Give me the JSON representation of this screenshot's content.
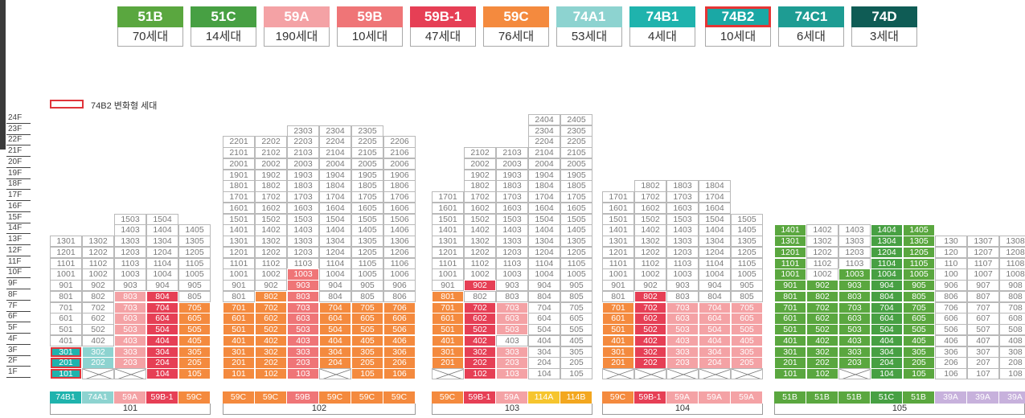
{
  "colors": {
    "51B": "#5aa73f",
    "51C": "#47a043",
    "59A": "#f4a2a5",
    "59B": "#ef7577",
    "59B-1": "#e63f55",
    "59C": "#f48a3e",
    "74A1": "#8dd3d0",
    "74B1": "#1fb3ad",
    "74B2": "#1aa8a5",
    "74C1": "#1e9c93",
    "74D": "#0f5c55",
    "114A": "#f6c52e",
    "114B": "#f3a71f",
    "39A": "#c7b1dc",
    "highlight": "#e0343a",
    "empty_text": "#7a7a7a"
  },
  "legend": [
    {
      "code": "51B",
      "count": "70세대"
    },
    {
      "code": "51C",
      "count": "14세대"
    },
    {
      "code": "59A",
      "count": "190세대"
    },
    {
      "code": "59B",
      "count": "10세대"
    },
    {
      "code": "59B-1",
      "count": "47세대"
    },
    {
      "code": "59C",
      "count": "76세대"
    },
    {
      "code": "74A1",
      "count": "53세대"
    },
    {
      "code": "74B1",
      "count": "4세대"
    },
    {
      "code": "74B2",
      "count": "10세대",
      "selected": true
    },
    {
      "code": "74C1",
      "count": "6세대"
    },
    {
      "code": "74D",
      "count": "3세대"
    }
  ],
  "note": {
    "label": "74B2 변화형 세대"
  },
  "floors": [
    "24F",
    "23F",
    "22F",
    "21F",
    "20F",
    "19F",
    "18F",
    "17F",
    "16F",
    "15F",
    "14F",
    "13F",
    "12F",
    "11F",
    "10F",
    "9F",
    "8F",
    "7F",
    "6F",
    "5F",
    "4F",
    "3F",
    "2F",
    "1F"
  ],
  "buildings": [
    {
      "name": "101",
      "columns": [
        {
          "max": 13,
          "colored": {
            "3": "74B1",
            "2": "74B1",
            "1": "74B1"
          },
          "highlight": [
            3,
            2,
            1
          ]
        },
        {
          "max": 13,
          "colored": {
            "3": "74A1",
            "2": "74A1"
          },
          "x_floors": [
            1
          ]
        },
        {
          "max": 15,
          "min": 2,
          "colored": {
            "8": "59A",
            "7": "59A",
            "6": "59A",
            "5": "59A",
            "4": "59A",
            "3": "59A",
            "2": "59A"
          },
          "x_floors": [
            1
          ]
        },
        {
          "max": 15,
          "colored": {
            "8": "59B-1",
            "7": "59B-1",
            "6": "59B-1",
            "5": "59B-1",
            "4": "59B-1",
            "3": "59B-1",
            "2": "59B-1",
            "1": "59B-1"
          }
        },
        {
          "max": 14,
          "colored": {
            "7": "59C",
            "6": "59C",
            "5": "59C",
            "4": "59C",
            "3": "59C",
            "2": "59C",
            "1": "59C"
          }
        }
      ],
      "tags": [
        "74B1",
        "74A1",
        "59A",
        "59B-1",
        "59C"
      ]
    },
    {
      "name": "102",
      "columns": [
        {
          "max": 22,
          "colored": {
            "7": "59C",
            "6": "59C",
            "5": "59C",
            "4": "59C",
            "3": "59C",
            "2": "59C",
            "1": "59C"
          }
        },
        {
          "max": 22,
          "colored": {
            "8": "59C",
            "7": "59C",
            "6": "59C",
            "5": "59C",
            "4": "59C",
            "3": "59C",
            "2": "59C",
            "1": "59C"
          }
        },
        {
          "max": 23,
          "colored": {
            "10": "59B",
            "9": "59B",
            "8": "59B",
            "7": "59B",
            "6": "59B",
            "5": "59B",
            "4": "59B",
            "3": "59B",
            "2": "59B",
            "1": "59B"
          }
        },
        {
          "max": 23,
          "colored": {
            "7": "59C",
            "6": "59C",
            "5": "59C",
            "4": "59C",
            "3": "59C",
            "2": "59C"
          },
          "x_floors": [
            1
          ]
        },
        {
          "max": 23,
          "colored": {
            "7": "59C",
            "6": "59C",
            "5": "59C",
            "4": "59C",
            "3": "59C",
            "2": "59C",
            "1": "59C"
          }
        },
        {
          "max": 22,
          "colored": {
            "7": "59C",
            "6": "59C",
            "5": "59C",
            "4": "59C",
            "3": "59C",
            "2": "59C",
            "1": "59C"
          }
        }
      ],
      "tags": [
        "59C",
        "59C",
        "59B",
        "59C",
        "59C",
        "59C"
      ]
    },
    {
      "name": "103",
      "columns": [
        {
          "max": 17,
          "colored": {
            "8": "59C",
            "7": "59C",
            "6": "59C",
            "5": "59C",
            "4": "59C",
            "3": "59C",
            "2": "59C"
          },
          "x_floors": [
            1
          ]
        },
        {
          "max": 21,
          "colored": {
            "9": "59B-1",
            "7": "59B-1",
            "6": "59B-1",
            "5": "59B-1",
            "4": "59B-1",
            "3": "59B-1",
            "2": "59B-1",
            "1": "59B-1"
          }
        },
        {
          "max": 21,
          "colored": {
            "7": "59A",
            "6": "59A",
            "5": "59A",
            "3": "59A",
            "2": "59A",
            "1": "59A"
          }
        },
        {
          "max": 24
        },
        {
          "max": 24
        }
      ],
      "tags": [
        "59C",
        "59B-1",
        "59A",
        "114A",
        "114B"
      ]
    },
    {
      "name": "104",
      "columns": [
        {
          "max": 17,
          "colored": {
            "7": "59C",
            "6": "59C",
            "5": "59C",
            "4": "59C",
            "3": "59C",
            "2": "59C"
          },
          "x_floors": [
            1
          ]
        },
        {
          "max": 18,
          "colored": {
            "8": "59B-1",
            "7": "59B-1",
            "6": "59B-1",
            "5": "59B-1",
            "4": "59B-1",
            "3": "59B-1",
            "2": "59B-1"
          },
          "x_floors": [
            1
          ]
        },
        {
          "max": 18,
          "colored": {
            "7": "59A",
            "6": "59A",
            "5": "59A",
            "4": "59A",
            "3": "59A",
            "2": "59A"
          },
          "x_floors": [
            1
          ]
        },
        {
          "max": 18,
          "colored": {
            "7": "59A",
            "6": "59A",
            "5": "59A",
            "4": "59A",
            "3": "59A",
            "2": "59A"
          },
          "x_floors": [
            1
          ]
        },
        {
          "max": 15,
          "colored": {
            "7": "59A",
            "6": "59A",
            "5": "59A",
            "4": "59A",
            "3": "59A",
            "2": "59A"
          },
          "x_floors": [
            1
          ]
        }
      ],
      "tags": [
        "59C",
        "59B-1",
        "59A",
        "59A",
        "59A"
      ]
    },
    {
      "name": "105",
      "columns": [
        {
          "max": 14,
          "colored": {
            "14": "51B",
            "13": "51B",
            "12": "51B",
            "11": "51B",
            "10": "51B",
            "9": "51B",
            "8": "51B",
            "7": "51B",
            "6": "51B",
            "5": "51B",
            "4": "51B",
            "3": "51B",
            "2": "51B",
            "1": "51B"
          }
        },
        {
          "max": 14,
          "colored": {
            "9": "51B",
            "8": "51B",
            "7": "51B",
            "6": "51B",
            "5": "51B",
            "4": "51B",
            "3": "51B",
            "2": "51B",
            "1": "51B"
          }
        },
        {
          "max": 14,
          "colored": {
            "10": "51B",
            "9": "51B",
            "8": "51B",
            "7": "51B",
            "6": "51B",
            "5": "51B",
            "4": "51B",
            "3": "51B",
            "2": "51B"
          },
          "x_floors": [
            1
          ]
        },
        {
          "max": 14,
          "colored": {
            "14": "51C",
            "13": "51C",
            "12": "51C",
            "11": "51C",
            "10": "51C",
            "9": "51C",
            "8": "51C",
            "7": "51C",
            "6": "51C",
            "5": "51C",
            "4": "51C",
            "3": "51C",
            "2": "51C",
            "1": "51C"
          }
        },
        {
          "max": 14,
          "colored": {
            "14": "51B",
            "13": "51B",
            "12": "51B",
            "11": "51B",
            "10": "51B",
            "9": "51B",
            "8": "51B",
            "7": "51B",
            "6": "51B",
            "5": "51B",
            "4": "51B",
            "3": "51B",
            "2": "51B",
            "1": "51B"
          }
        },
        {
          "max": 13,
          "label_prefix": "130",
          "colored": {}
        },
        {
          "max": 13,
          "colored": {}
        },
        {
          "max": 13,
          "colored": {}
        }
      ],
      "tags": [
        "51B",
        "51B",
        "51B",
        "51C",
        "51B",
        "39A",
        "39A",
        "39A"
      ]
    }
  ]
}
